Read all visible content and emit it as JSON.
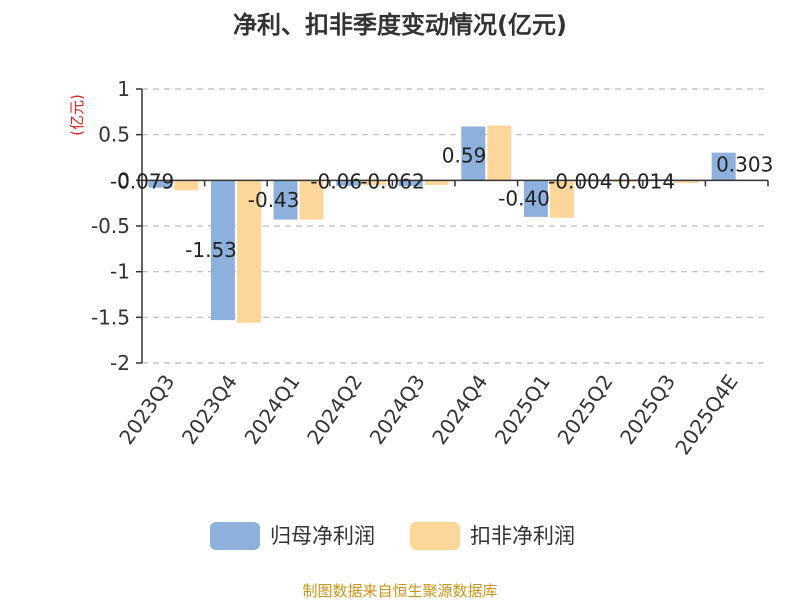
{
  "chart_data": {
    "type": "bar",
    "title": "净利、扣非季度变动情况(亿元)",
    "unit_label": "(亿元)",
    "categories": [
      "2023Q3",
      "2023Q4",
      "2024Q1",
      "2024Q2",
      "2024Q3",
      "2024Q4",
      "2025Q1",
      "2025Q2",
      "2025Q3",
      "2025Q4E"
    ],
    "series": [
      {
        "name": "归母净利润",
        "color": "#8eb0dc",
        "values": [
          -0.079,
          -1.53,
          -0.43,
          -0.06,
          -0.062,
          0.59,
          -0.4,
          -0.004,
          0.014,
          0.303
        ],
        "labels": [
          "-0.079",
          "-1.53",
          "-0.43",
          "-0.06",
          "-0.062",
          "0.59",
          "-0.40",
          "-0.004",
          "0.014",
          "0.303"
        ]
      },
      {
        "name": "扣非净利润",
        "color": "#fdd699",
        "values": [
          -0.11,
          -1.56,
          -0.43,
          -0.05,
          -0.05,
          0.6,
          -0.41,
          -0.02,
          -0.03,
          null
        ]
      }
    ],
    "ylim": [
      -2,
      1
    ],
    "yticks": [
      1,
      0.5,
      0,
      -0.5,
      -1,
      -1.5,
      -2
    ],
    "ytick_labels": [
      "1",
      "0.5",
      "0",
      "-0.5",
      "-1",
      "-1.5",
      "-2"
    ],
    "grid": true,
    "legend_position": "bottom"
  },
  "source": "制图数据来自恒生聚源数据库"
}
